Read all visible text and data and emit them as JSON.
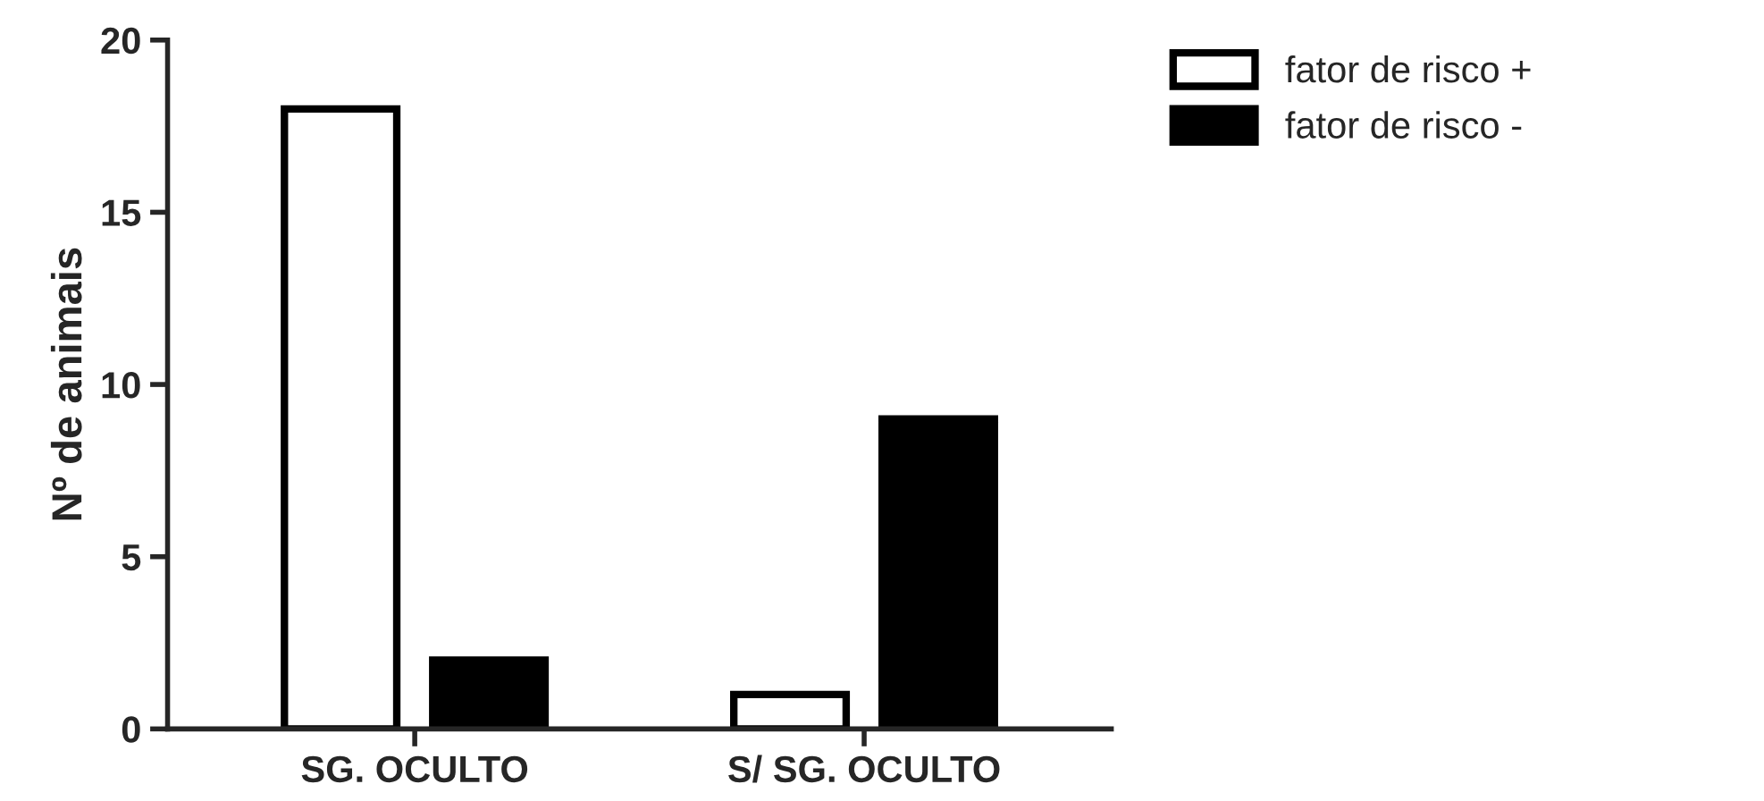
{
  "chart_data": {
    "type": "bar",
    "ylabel": "Nº de animais",
    "categories": [
      "SG. OCULTO",
      "S/ SG. OCULTO"
    ],
    "series": [
      {
        "name": "fator de risco +",
        "color": "#ffffff",
        "values": [
          18,
          1
        ]
      },
      {
        "name": "fator de risco -",
        "color": "#000000",
        "values": [
          2,
          9
        ]
      }
    ],
    "ylim": [
      0,
      20
    ],
    "yticks": [
      0,
      5,
      10,
      15,
      20
    ],
    "grid": false,
    "legend": "top right"
  }
}
